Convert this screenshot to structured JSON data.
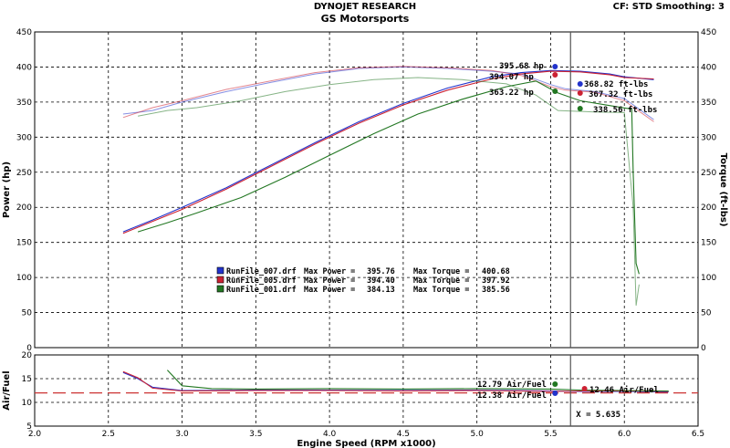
{
  "header": {
    "title": "DYNOJET RESEARCH",
    "subtitle": "GS Motorsports",
    "info": "CF: STD   Smoothing: 3"
  },
  "chart_data": {
    "type": "line",
    "xlabel": "Engine Speed (RPM x1000)",
    "xlim": [
      2.0,
      6.5
    ],
    "xticks": [
      "2.0",
      "2.5",
      "3.0",
      "3.5",
      "4.0",
      "4.5",
      "5.0",
      "5.5",
      "6.0",
      "6.5"
    ],
    "main": {
      "ylabel_left": "Power (hp)",
      "ylabel_right": "Torque (ft-lbs)",
      "ylim": [
        0,
        450
      ],
      "yticks": [
        "0",
        "50",
        "100",
        "150",
        "200",
        "250",
        "300",
        "350",
        "400",
        "450"
      ]
    },
    "af": {
      "ylabel": "Air/Fuel",
      "ylim": [
        5,
        20
      ],
      "yticks": [
        "5",
        "10",
        "15",
        "20"
      ],
      "reference": 12
    },
    "cursor_rpm": 5.635,
    "cursor_label": "X = 5.635",
    "colors": {
      "run007": "#2233cc",
      "run005": "#cc2233",
      "run001": "#227722",
      "ref": "#cc3333"
    },
    "series": [
      {
        "name": "RunFile_007.drf",
        "color": "#2233cc",
        "power": [
          [
            2.6,
            165
          ],
          [
            2.8,
            182
          ],
          [
            3.0,
            200
          ],
          [
            3.3,
            228
          ],
          [
            3.6,
            260
          ],
          [
            3.9,
            292
          ],
          [
            4.2,
            322
          ],
          [
            4.5,
            348
          ],
          [
            4.8,
            370
          ],
          [
            5.1,
            386
          ],
          [
            5.3,
            392
          ],
          [
            5.5,
            395
          ],
          [
            5.7,
            394
          ],
          [
            5.9,
            390
          ],
          [
            6.0,
            386
          ],
          [
            6.2,
            382
          ]
        ],
        "torque": [
          [
            2.6,
            333
          ],
          [
            2.8,
            338
          ],
          [
            3.0,
            350
          ],
          [
            3.3,
            365
          ],
          [
            3.6,
            378
          ],
          [
            3.9,
            390
          ],
          [
            4.2,
            398
          ],
          [
            4.5,
            400
          ],
          [
            4.8,
            398
          ],
          [
            5.1,
            394
          ],
          [
            5.3,
            390
          ],
          [
            5.5,
            375
          ],
          [
            5.6,
            369
          ],
          [
            5.8,
            365
          ],
          [
            6.0,
            355
          ],
          [
            6.2,
            325
          ]
        ],
        "af": [
          [
            2.6,
            16.3
          ],
          [
            2.7,
            15.0
          ],
          [
            2.8,
            13.2
          ],
          [
            3.0,
            12.5
          ],
          [
            3.5,
            12.6
          ],
          [
            4.0,
            12.6
          ],
          [
            4.5,
            12.5
          ],
          [
            5.0,
            12.6
          ],
          [
            5.5,
            12.4
          ],
          [
            5.7,
            12.3
          ],
          [
            6.0,
            12.3
          ],
          [
            6.3,
            12.2
          ]
        ]
      },
      {
        "name": "RunFile_005.drf",
        "color": "#cc2233",
        "power": [
          [
            2.6,
            163
          ],
          [
            2.8,
            180
          ],
          [
            3.0,
            197
          ],
          [
            3.3,
            226
          ],
          [
            3.6,
            258
          ],
          [
            3.9,
            290
          ],
          [
            4.2,
            320
          ],
          [
            4.5,
            346
          ],
          [
            4.8,
            367
          ],
          [
            5.1,
            383
          ],
          [
            5.3,
            390
          ],
          [
            5.5,
            394
          ],
          [
            5.7,
            393
          ],
          [
            5.9,
            389
          ],
          [
            6.0,
            385
          ],
          [
            6.2,
            383
          ]
        ],
        "torque": [
          [
            2.6,
            328
          ],
          [
            2.8,
            342
          ],
          [
            3.0,
            352
          ],
          [
            3.3,
            368
          ],
          [
            3.6,
            380
          ],
          [
            3.9,
            392
          ],
          [
            4.2,
            399
          ],
          [
            4.5,
            401
          ],
          [
            4.8,
            399
          ],
          [
            5.1,
            395
          ],
          [
            5.3,
            388
          ],
          [
            5.5,
            372
          ],
          [
            5.6,
            367
          ],
          [
            5.8,
            364
          ],
          [
            6.0,
            352
          ],
          [
            6.2,
            322
          ]
        ],
        "af": [
          [
            2.6,
            16.5
          ],
          [
            2.7,
            15.2
          ],
          [
            2.8,
            13.0
          ],
          [
            3.0,
            12.4
          ],
          [
            3.5,
            12.5
          ],
          [
            4.0,
            12.5
          ],
          [
            4.5,
            12.4
          ],
          [
            5.0,
            12.5
          ],
          [
            5.5,
            12.3
          ],
          [
            5.7,
            12.4
          ],
          [
            6.0,
            12.4
          ],
          [
            6.3,
            12.3
          ]
        ]
      },
      {
        "name": "RunFile_001.drf",
        "color": "#227722",
        "power": [
          [
            2.7,
            165
          ],
          [
            2.9,
            178
          ],
          [
            3.1,
            192
          ],
          [
            3.4,
            214
          ],
          [
            3.7,
            243
          ],
          [
            4.0,
            274
          ],
          [
            4.3,
            305
          ],
          [
            4.6,
            333
          ],
          [
            4.9,
            354
          ],
          [
            5.2,
            372
          ],
          [
            5.4,
            380
          ],
          [
            5.55,
            363
          ],
          [
            5.7,
            352
          ],
          [
            5.9,
            345
          ],
          [
            6.05,
            340
          ],
          [
            6.06,
            250
          ],
          [
            6.08,
            120
          ],
          [
            6.1,
            105
          ]
        ],
        "torque": [
          [
            2.7,
            330
          ],
          [
            2.9,
            338
          ],
          [
            3.1,
            342
          ],
          [
            3.4,
            352
          ],
          [
            3.7,
            365
          ],
          [
            4.0,
            375
          ],
          [
            4.3,
            382
          ],
          [
            4.6,
            385
          ],
          [
            4.9,
            382
          ],
          [
            5.2,
            376
          ],
          [
            5.4,
            360
          ],
          [
            5.55,
            338
          ],
          [
            5.8,
            336
          ],
          [
            6.0,
            335
          ],
          [
            6.06,
            200
          ],
          [
            6.08,
            60
          ],
          [
            6.1,
            90
          ]
        ],
        "af": [
          [
            2.9,
            16.8
          ],
          [
            3.0,
            13.5
          ],
          [
            3.2,
            12.9
          ],
          [
            3.5,
            12.8
          ],
          [
            4.0,
            12.9
          ],
          [
            4.5,
            12.8
          ],
          [
            5.0,
            12.9
          ],
          [
            5.5,
            12.8
          ],
          [
            5.7,
            12.6
          ],
          [
            6.0,
            12.5
          ],
          [
            6.3,
            12.4
          ]
        ]
      }
    ],
    "annotations": [
      {
        "text": "395.68 hp",
        "series": "RunFile_007.drf"
      },
      {
        "text": "394.07 hp",
        "series": "RunFile_005.drf"
      },
      {
        "text": "363.22 hp",
        "series": "RunFile_001.drf"
      },
      {
        "text": "368.82 ft-lbs",
        "series": "RunFile_007.drf"
      },
      {
        "text": "367.32 ft-lbs",
        "series": "RunFile_005.drf"
      },
      {
        "text": "338.56 ft-lbs",
        "series": "RunFile_001.drf"
      },
      {
        "text": "12.79 Air/Fuel",
        "series": "RunFile_001.drf"
      },
      {
        "text": "12.38 Air/Fuel",
        "series": "RunFile_007.drf"
      },
      {
        "text": "12.46 Air/Fuel",
        "series": "RunFile_005.drf"
      }
    ],
    "legend": [
      {
        "file": "RunFile_007.drf",
        "max_power": "395.76",
        "max_torque": "400.68"
      },
      {
        "file": "RunFile_005.drf",
        "max_power": "394.40",
        "max_torque": "397.92"
      },
      {
        "file": "RunFile_001.drf",
        "max_power": "384.13",
        "max_torque": "385.56"
      }
    ],
    "legend_power_label": "Max Power =",
    "legend_torque_label": "Max Torque =",
    "legend_placement": "center-bottom",
    "grid": true
  }
}
